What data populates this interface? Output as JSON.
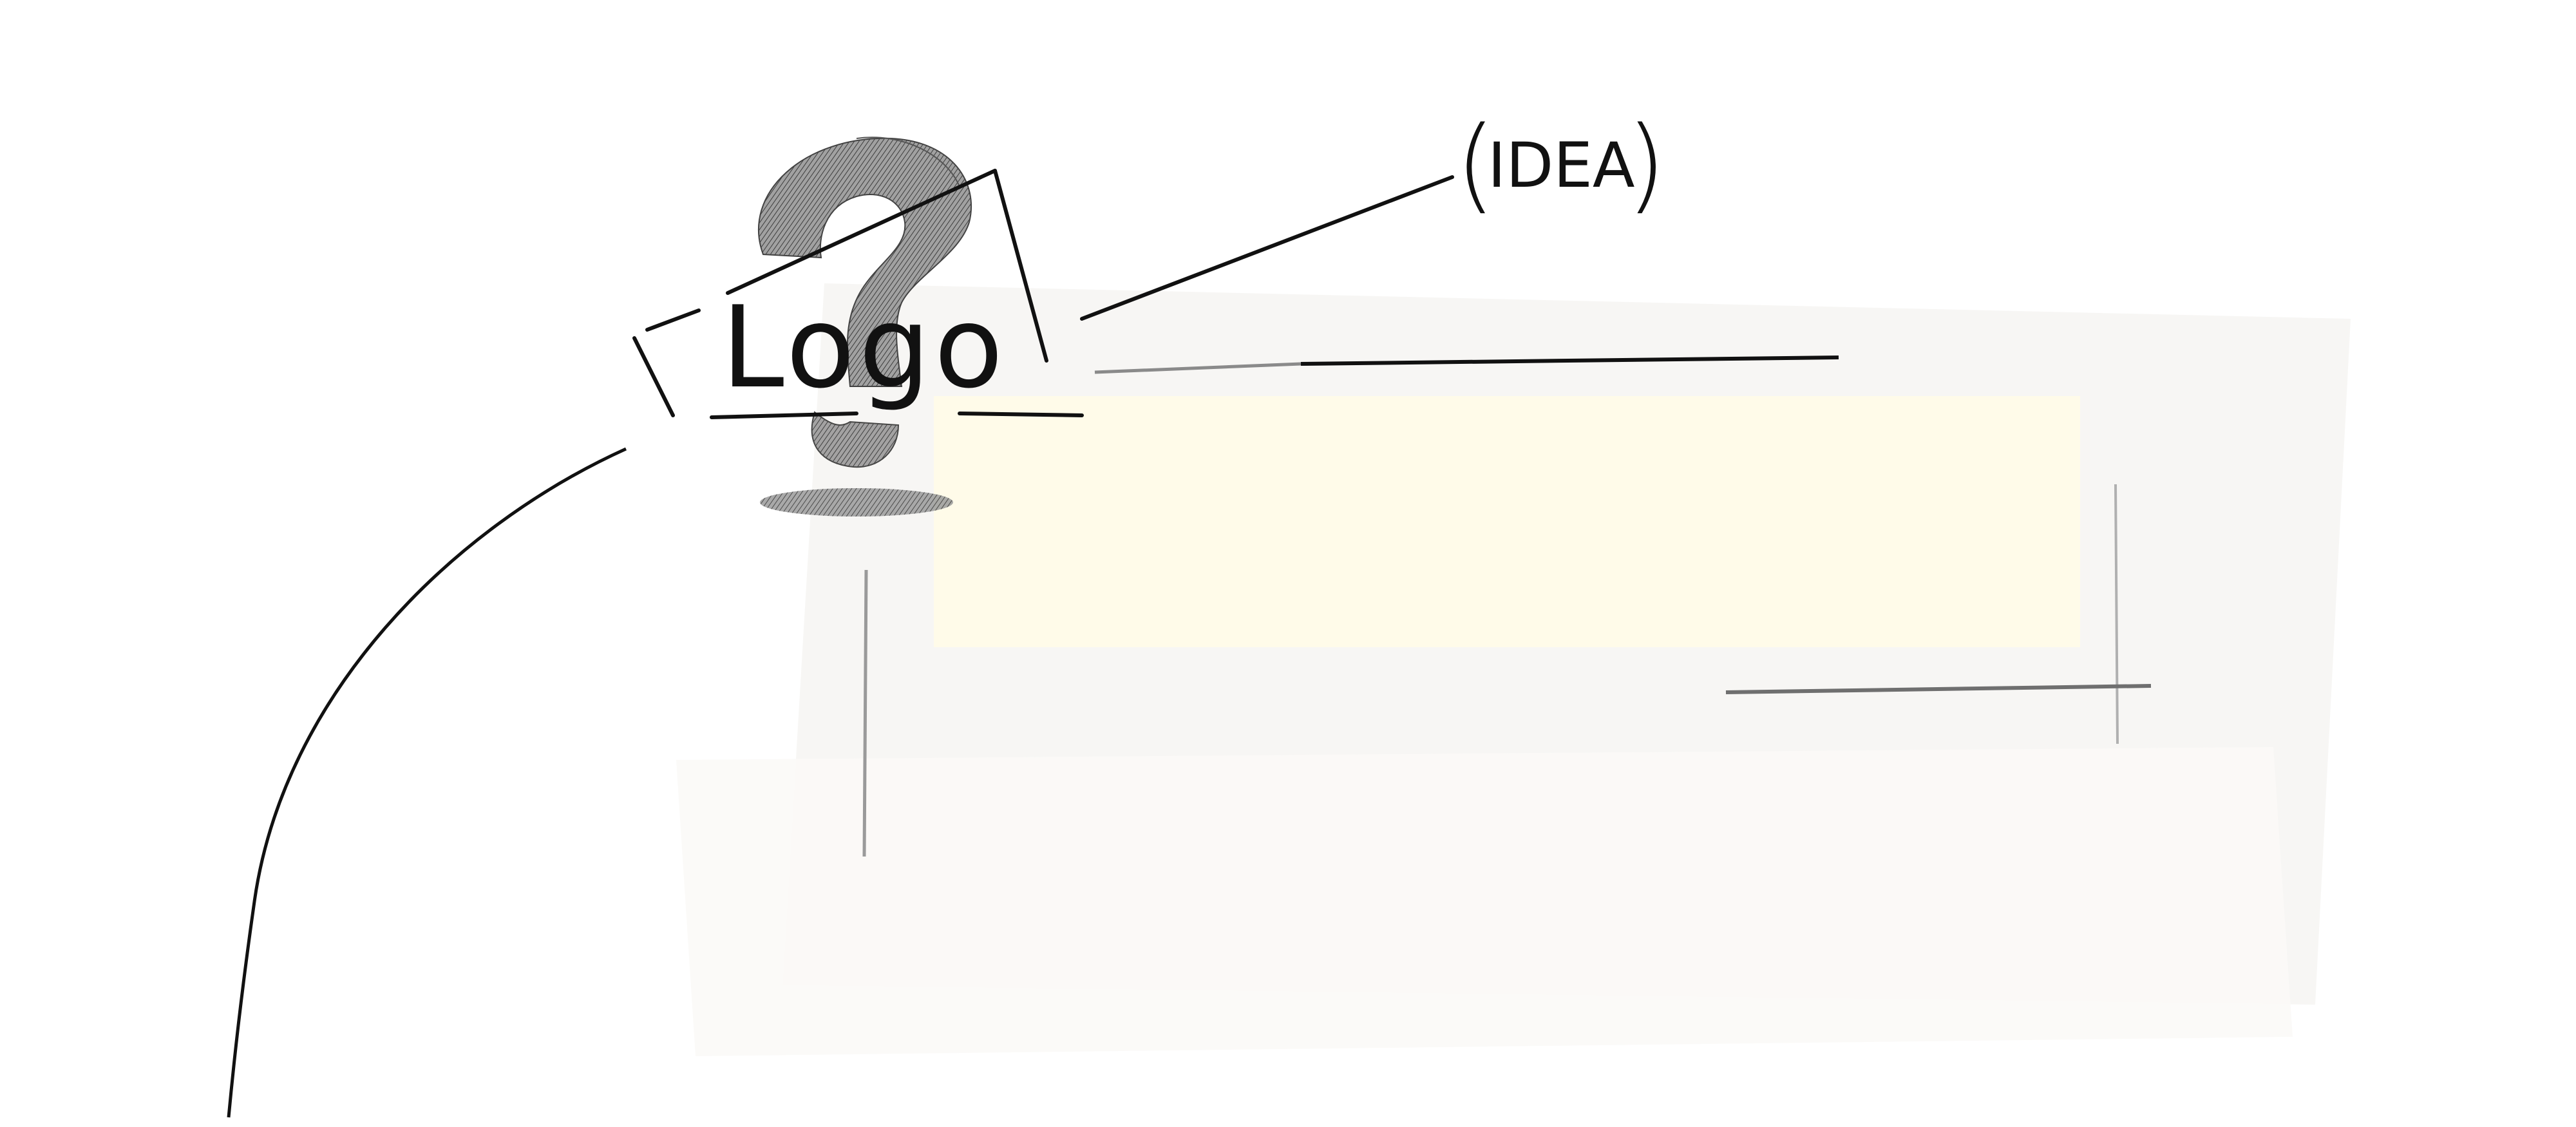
{
  "logo": {
    "text": "Logo"
  },
  "idea_label": {
    "text": "IDEA",
    "left_paren": "(",
    "right_paren": ")"
  },
  "colors": {
    "ink": "#111111",
    "panel_back": "#f6f5f2",
    "panel_front": "#fbfaf7",
    "highlight": "#fffbe9",
    "gray_stroke": "#8a8a8a",
    "shadow": "#6b6b6b"
  },
  "icons": {
    "logo_mark": "question-mark-icon"
  }
}
